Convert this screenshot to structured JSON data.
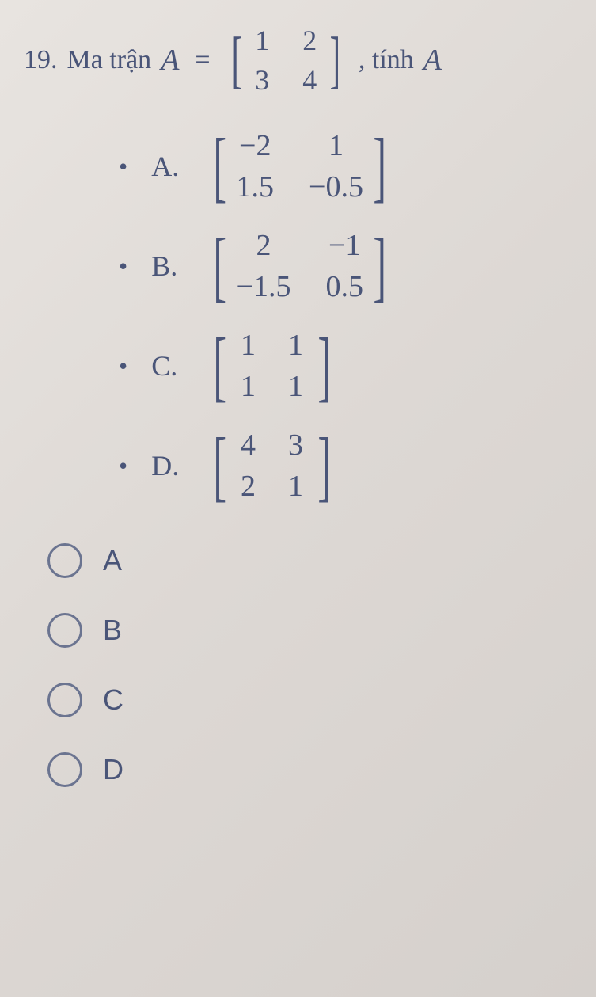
{
  "question": {
    "number": "19.",
    "prefix": "Ma trận",
    "variable": "A",
    "equals": "=",
    "matrix": {
      "r1c1": "1",
      "r1c2": "2",
      "r2c1": "3",
      "r2c2": "4"
    },
    "suffix": ", tính",
    "suffix_var": "A"
  },
  "options": {
    "A": {
      "label": "A.",
      "matrix": {
        "r1c1": "−2",
        "r1c2": "1",
        "r2c1": "1.5",
        "r2c2": "−0.5"
      }
    },
    "B": {
      "label": "B.",
      "matrix": {
        "r1c1": "2",
        "r1c2": "−1",
        "r2c1": "−1.5",
        "r2c2": "0.5"
      }
    },
    "C": {
      "label": "C.",
      "matrix": {
        "r1c1": "1",
        "r1c2": "1",
        "r2c1": "1",
        "r2c2": "1"
      }
    },
    "D": {
      "label": "D.",
      "matrix": {
        "r1c1": "4",
        "r1c2": "3",
        "r2c1": "2",
        "r2c2": "1"
      }
    }
  },
  "answers": {
    "A": "A",
    "B": "B",
    "C": "C",
    "D": "D"
  },
  "colors": {
    "text": "#4a5578",
    "bg_start": "#e8e4e0",
    "bg_end": "#d5d0cc",
    "radio_border": "#6b7490"
  }
}
